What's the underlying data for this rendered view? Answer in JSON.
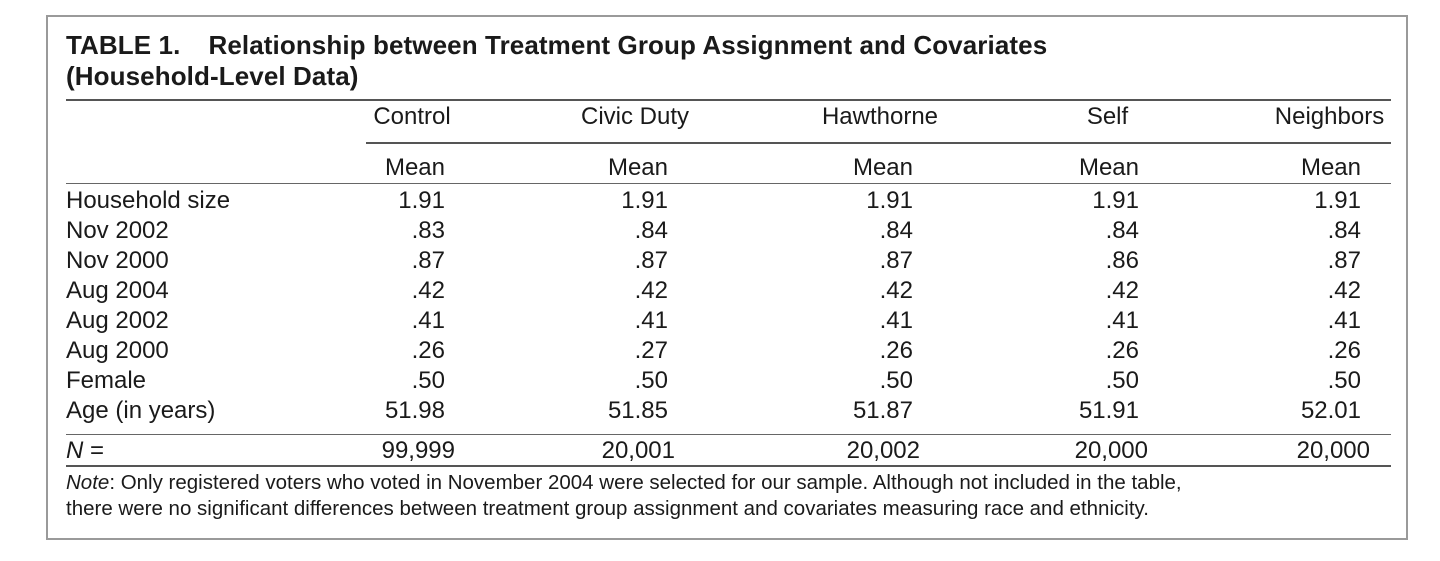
{
  "table": {
    "title_label": "TABLE 1.",
    "title_text": "Relationship between Treatment Group Assignment and Covariates",
    "title_line2": "(Household-Level Data)",
    "columns": [
      "Control",
      "Civic Duty",
      "Hawthorne",
      "Self",
      "Neighbors"
    ],
    "subheaders": [
      "Mean",
      "Mean",
      "Mean",
      "Mean",
      "Mean"
    ],
    "rows": [
      {
        "label": "Household size",
        "values": [
          "1.91",
          "1.91",
          "1.91",
          "1.91",
          "1.91"
        ]
      },
      {
        "label": "Nov 2002",
        "values": [
          ".83",
          ".84",
          ".84",
          ".84",
          ".84"
        ]
      },
      {
        "label": "Nov 2000",
        "values": [
          ".87",
          ".87",
          ".87",
          ".86",
          ".87"
        ]
      },
      {
        "label": "Aug 2004",
        "values": [
          ".42",
          ".42",
          ".42",
          ".42",
          ".42"
        ]
      },
      {
        "label": "Aug 2002",
        "values": [
          ".41",
          ".41",
          ".41",
          ".41",
          ".41"
        ]
      },
      {
        "label": "Aug 2000",
        "values": [
          ".26",
          ".27",
          ".26",
          ".26",
          ".26"
        ]
      },
      {
        "label": "Female",
        "values": [
          ".50",
          ".50",
          ".50",
          ".50",
          ".50"
        ]
      },
      {
        "label": "Age (in years)",
        "values": [
          "51.98",
          "51.85",
          "51.87",
          "51.91",
          "52.01"
        ]
      }
    ],
    "n_row": {
      "label_italic": "N",
      "label_rest": " =",
      "values": [
        "99,999",
        "20,001",
        "20,002",
        "20,000",
        "20,000"
      ]
    },
    "note_label": "Note",
    "note_line1": ":  Only registered voters who voted in November 2004 were selected for our sample. Although not included in the table,",
    "note_line2": "there were no significant differences between treatment group assignment and covariates measuring race and ethnicity."
  }
}
